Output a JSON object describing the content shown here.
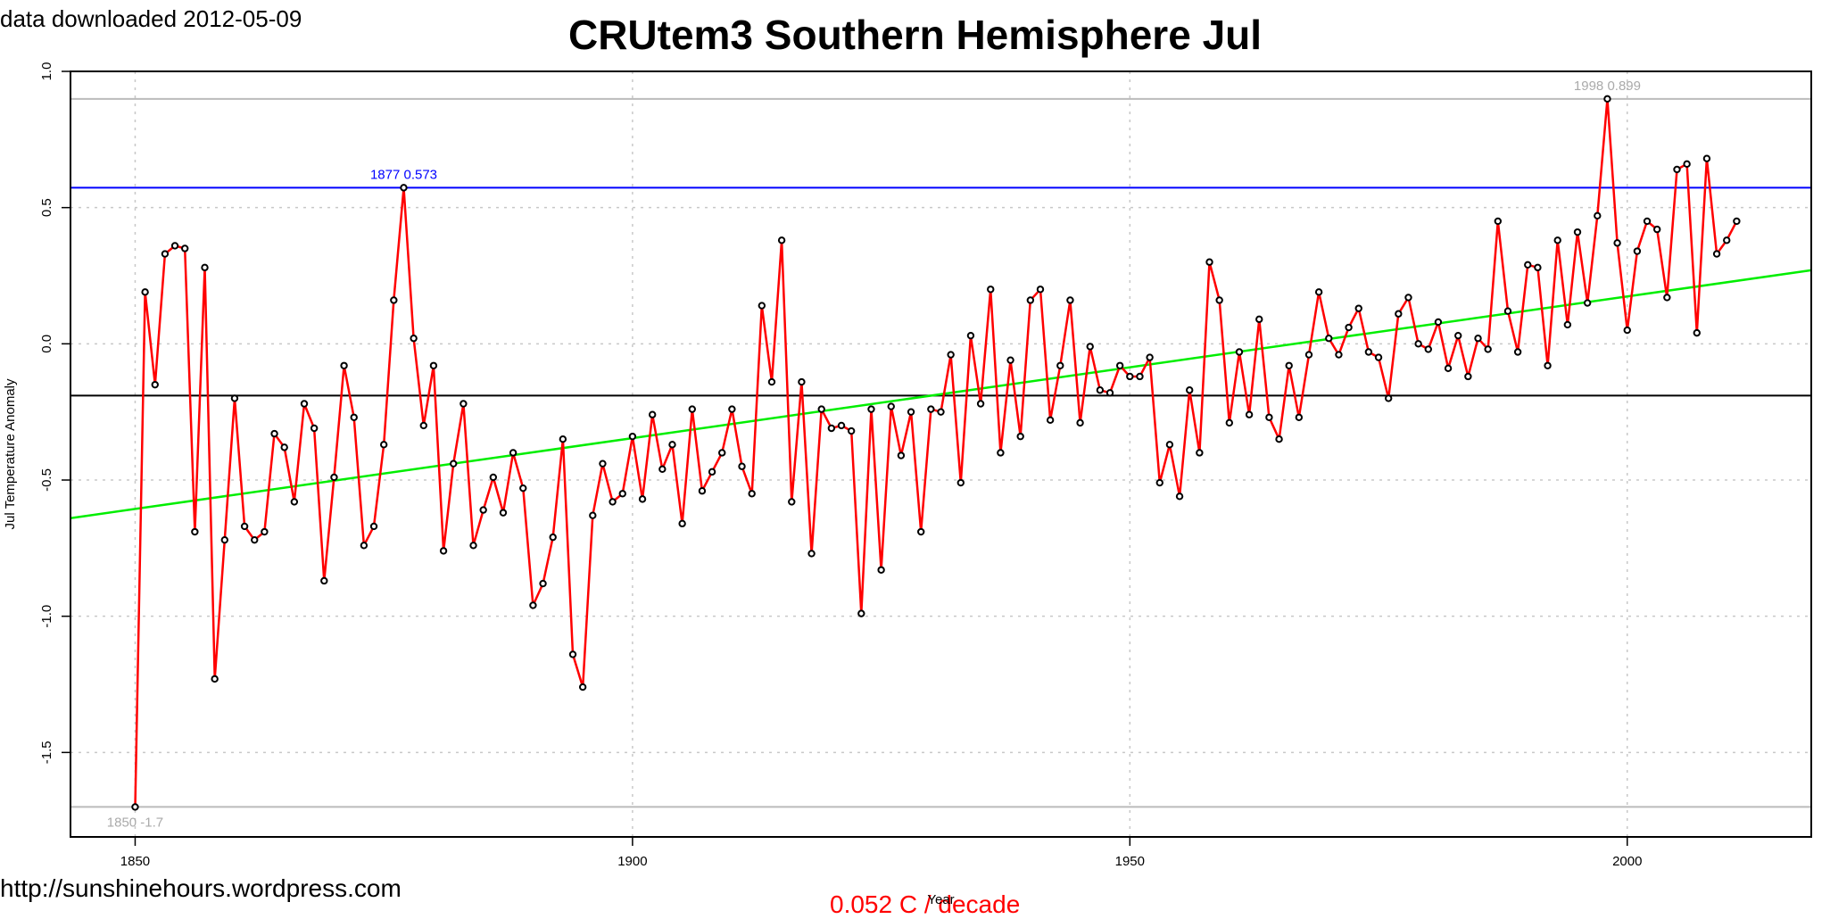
{
  "header": {
    "download_note": "data downloaded 2012-05-09",
    "title": "CRUtem3 Southern Hemisphere Jul"
  },
  "footer": {
    "website": "http://sunshinehours.wordpress.com",
    "trend_label": "0.052 C / decade"
  },
  "colors": {
    "series_line": "#ff0000",
    "trend_line": "#00ee00",
    "max_line": "#0000ff",
    "mean_line": "#000000",
    "extreme_lines": "#bbbbbb",
    "grid": "#c8c8c8"
  },
  "chart_data": {
    "type": "line",
    "title": "CRUtem3 Southern Hemisphere Jul",
    "xlabel": "Year",
    "ylabel": "Jul Temperature Anomaly",
    "xlim": [
      1843.5,
      2018.5
    ],
    "ylim": [
      -1.81,
      1.0
    ],
    "x_ticks": [
      1850,
      1900,
      1950,
      2000
    ],
    "y_ticks": [
      -1.5,
      -1.0,
      -0.5,
      0.0,
      0.5,
      1.0
    ],
    "y_tick_labels": [
      "-1.5",
      "-1.0",
      "-0.5",
      "0.0",
      "0.5",
      "1.0"
    ],
    "grid": true,
    "series": [
      {
        "start_year": 1850,
        "values": [
          -1.7,
          0.19,
          -0.15,
          0.33,
          0.36,
          0.35,
          -0.69,
          0.28,
          -1.23,
          -0.72,
          -0.2,
          -0.67,
          -0.72,
          -0.69,
          -0.33,
          -0.38,
          -0.58,
          -0.22,
          -0.31,
          -0.87,
          -0.49,
          -0.08,
          -0.27,
          -0.74,
          -0.67,
          -0.37,
          0.16,
          0.573,
          0.02,
          -0.3,
          -0.08,
          -0.76,
          -0.44,
          -0.22,
          -0.74,
          -0.61,
          -0.49,
          -0.62,
          -0.4,
          -0.53,
          -0.96,
          -0.88,
          -0.71,
          -0.35,
          -1.14,
          -1.26,
          -0.63,
          -0.44,
          -0.58,
          -0.55,
          -0.34,
          -0.57,
          -0.26,
          -0.46,
          -0.37,
          -0.66,
          -0.24,
          -0.54,
          -0.47,
          -0.4,
          -0.24,
          -0.45,
          -0.55,
          0.14,
          -0.14,
          0.38,
          -0.58,
          -0.14,
          -0.77,
          -0.24,
          -0.31,
          -0.3,
          -0.32,
          -0.99,
          -0.24,
          -0.83,
          -0.23,
          -0.41,
          -0.25,
          -0.69,
          -0.24,
          -0.25,
          -0.04,
          -0.51,
          0.03,
          -0.22,
          0.2,
          -0.4,
          -0.06,
          -0.34,
          0.16,
          0.2,
          -0.28,
          -0.08,
          0.16,
          -0.29,
          -0.01,
          -0.17,
          -0.18,
          -0.08,
          -0.12,
          -0.12,
          -0.05,
          -0.51,
          -0.37,
          -0.56,
          -0.17,
          -0.4,
          0.3,
          0.16,
          -0.29,
          -0.03,
          -0.26,
          0.09,
          -0.27,
          -0.35,
          -0.08,
          -0.27,
          -0.04,
          0.19,
          0.02,
          -0.04,
          0.06,
          0.13,
          -0.03,
          -0.05,
          -0.2,
          0.11,
          0.17,
          0.0,
          -0.02,
          0.08,
          -0.09,
          0.03,
          -0.12,
          0.02,
          -0.02,
          0.45,
          0.12,
          -0.03,
          0.29,
          0.28,
          -0.08,
          0.38,
          0.07,
          0.41,
          0.15,
          0.47,
          0.899,
          0.37,
          0.05,
          0.34,
          0.45,
          0.42,
          0.17,
          0.64,
          0.66,
          0.04,
          0.68,
          0.33,
          0.38,
          0.45
        ]
      }
    ],
    "trend": {
      "value_1843_5": -0.64,
      "value_2018_5": 0.27
    },
    "mean": -0.19,
    "annotations": [
      {
        "label": "1877 0.573",
        "x": 1877,
        "y": 0.573
      },
      {
        "label": "1998 0.899",
        "x": 1998,
        "y": 0.899
      },
      {
        "label": "1850 -1.7",
        "x": 1850,
        "y": -1.7
      }
    ]
  }
}
